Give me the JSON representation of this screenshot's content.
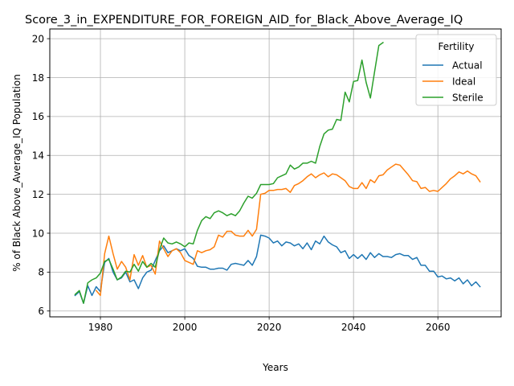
{
  "chart_data": {
    "type": "line",
    "title": "Score_3_in_EXPENDITURE_FOR_FOREIGN_AID_for_Black_Above_Average_IQ",
    "xlabel": "Years",
    "ylabel": "% of Black Above_Average_IQ Population",
    "xlim": [
      1968,
      2075
    ],
    "ylim": [
      5.7,
      20.5
    ],
    "xticks": [
      1980,
      2000,
      2020,
      2040,
      2060
    ],
    "yticks": [
      6,
      8,
      10,
      12,
      14,
      16,
      18,
      20
    ],
    "grid": true,
    "legend": {
      "title": "Fertility",
      "placement": "top-right"
    },
    "series": [
      {
        "name": "Actual",
        "color": "#1f77b4",
        "x": [
          1974,
          1975,
          1976,
          1977,
          1978,
          1979,
          1980,
          1981,
          1982,
          1983,
          1984,
          1985,
          1986,
          1987,
          1988,
          1989,
          1990,
          1991,
          1992,
          1993,
          1994,
          1995,
          1996,
          1997,
          1998,
          1999,
          2000,
          2001,
          2002,
          2003,
          2004,
          2005,
          2006,
          2007,
          2008,
          2009,
          2010,
          2011,
          2012,
          2013,
          2014,
          2015,
          2016,
          2017,
          2018,
          2019,
          2020,
          2021,
          2022,
          2023,
          2024,
          2025,
          2026,
          2027,
          2028,
          2029,
          2030,
          2031,
          2032,
          2033,
          2034,
          2035,
          2036,
          2037,
          2038,
          2039,
          2040,
          2041,
          2042,
          2043,
          2044,
          2045,
          2046,
          2047,
          2048,
          2049,
          2050,
          2051,
          2052,
          2053,
          2054,
          2055,
          2056,
          2057,
          2058,
          2059,
          2060,
          2061,
          2062,
          2063,
          2064,
          2065,
          2066,
          2067,
          2068,
          2069,
          2070
        ],
        "values": [
          6.8,
          7.0,
          6.4,
          7.3,
          6.8,
          7.25,
          7.0,
          8.5,
          8.7,
          8.0,
          7.6,
          7.7,
          8.0,
          7.5,
          7.6,
          7.15,
          7.7,
          8.0,
          8.1,
          8.6,
          9.1,
          9.35,
          9.0,
          9.1,
          9.2,
          9.1,
          9.2,
          8.85,
          8.7,
          8.3,
          8.25,
          8.25,
          8.15,
          8.15,
          8.2,
          8.2,
          8.1,
          8.4,
          8.45,
          8.4,
          8.35,
          8.6,
          8.35,
          8.8,
          9.9,
          9.85,
          9.75,
          9.5,
          9.6,
          9.35,
          9.55,
          9.5,
          9.35,
          9.45,
          9.2,
          9.5,
          9.15,
          9.6,
          9.45,
          9.85,
          9.55,
          9.4,
          9.3,
          9.0,
          9.1,
          8.7,
          8.9,
          8.7,
          8.9,
          8.65,
          9.0,
          8.75,
          8.95,
          8.8,
          8.8,
          8.75,
          8.9,
          8.95,
          8.85,
          8.85,
          8.65,
          8.75,
          8.35,
          8.35,
          8.05,
          8.05,
          7.75,
          7.8,
          7.65,
          7.7,
          7.55,
          7.7,
          7.4,
          7.6,
          7.3,
          7.5,
          7.25
        ]
      },
      {
        "name": "Ideal",
        "color": "#ff7f0e",
        "x": [
          1979,
          1980,
          1981,
          1982,
          1983,
          1984,
          1985,
          1986,
          1987,
          1988,
          1989,
          1990,
          1991,
          1992,
          1993,
          1994,
          1995,
          1996,
          1997,
          1998,
          1999,
          2000,
          2001,
          2002,
          2003,
          2004,
          2005,
          2006,
          2007,
          2008,
          2009,
          2010,
          2011,
          2012,
          2013,
          2014,
          2015,
          2016,
          2017,
          2018,
          2019,
          2020,
          2021,
          2022,
          2023,
          2024,
          2025,
          2026,
          2027,
          2028,
          2029,
          2030,
          2031,
          2032,
          2033,
          2034,
          2035,
          2036,
          2037,
          2038,
          2039,
          2040,
          2041,
          2042,
          2043,
          2044,
          2045,
          2046,
          2047,
          2048,
          2049,
          2050,
          2051,
          2052,
          2053,
          2054,
          2055,
          2056,
          2057,
          2058,
          2059,
          2060,
          2061,
          2062,
          2063,
          2064,
          2065,
          2066,
          2067,
          2068,
          2069,
          2070
        ],
        "values": [
          7.05,
          6.8,
          8.95,
          9.85,
          8.95,
          8.15,
          8.55,
          8.25,
          7.6,
          8.9,
          8.35,
          8.85,
          8.25,
          8.35,
          7.9,
          9.6,
          9.2,
          8.8,
          9.1,
          9.2,
          9.0,
          8.6,
          8.5,
          8.4,
          9.1,
          9.0,
          9.1,
          9.15,
          9.3,
          9.9,
          9.8,
          10.1,
          10.1,
          9.9,
          9.85,
          9.85,
          10.15,
          9.85,
          10.2,
          12.0,
          12.05,
          12.2,
          12.2,
          12.25,
          12.25,
          12.3,
          12.1,
          12.45,
          12.55,
          12.7,
          12.9,
          13.05,
          12.85,
          13.0,
          13.1,
          12.9,
          13.05,
          13.0,
          12.85,
          12.7,
          12.4,
          12.3,
          12.3,
          12.6,
          12.3,
          12.75,
          12.6,
          12.95,
          13.0,
          13.25,
          13.4,
          13.55,
          13.5,
          13.25,
          13.0,
          12.7,
          12.65,
          12.3,
          12.35,
          12.15,
          12.2,
          12.15,
          12.35,
          12.55,
          12.8,
          12.95,
          13.15,
          13.05,
          13.2,
          13.05,
          12.95,
          12.65
        ]
      },
      {
        "name": "Sterile",
        "color": "#2ca02c",
        "x": [
          1974,
          1975,
          1976,
          1977,
          1978,
          1979,
          1980,
          1981,
          1982,
          1983,
          1984,
          1985,
          1986,
          1987,
          1988,
          1989,
          1990,
          1991,
          1992,
          1993,
          1994,
          1995,
          1996,
          1997,
          1998,
          1999,
          2000,
          2001,
          2002,
          2003,
          2004,
          2005,
          2006,
          2007,
          2008,
          2009,
          2010,
          2011,
          2012,
          2013,
          2014,
          2015,
          2016,
          2017,
          2018,
          2019,
          2020,
          2021,
          2022,
          2023,
          2024,
          2025,
          2026,
          2027,
          2028,
          2029,
          2030,
          2031,
          2032,
          2033,
          2034,
          2035,
          2036,
          2037,
          2038,
          2039,
          2040,
          2041,
          2042,
          2043,
          2044,
          2045,
          2046,
          2047
        ],
        "values": [
          6.85,
          7.05,
          6.4,
          7.45,
          7.6,
          7.7,
          7.95,
          8.55,
          8.65,
          8.15,
          7.6,
          7.75,
          8.05,
          8.0,
          8.4,
          8.05,
          8.55,
          8.25,
          8.45,
          8.25,
          9.15,
          9.75,
          9.5,
          9.45,
          9.55,
          9.45,
          9.3,
          9.5,
          9.45,
          10.15,
          10.65,
          10.85,
          10.75,
          11.05,
          11.15,
          11.05,
          10.9,
          11.0,
          10.9,
          11.15,
          11.55,
          11.9,
          11.8,
          12.05,
          12.5,
          12.5,
          12.5,
          12.55,
          12.85,
          12.95,
          13.05,
          13.5,
          13.3,
          13.4,
          13.6,
          13.6,
          13.7,
          13.6,
          14.45,
          15.1,
          15.3,
          15.35,
          15.85,
          15.8,
          17.25,
          16.75,
          17.8,
          17.85,
          18.9,
          17.75,
          16.95,
          18.3,
          19.65,
          19.8
        ]
      }
    ]
  }
}
